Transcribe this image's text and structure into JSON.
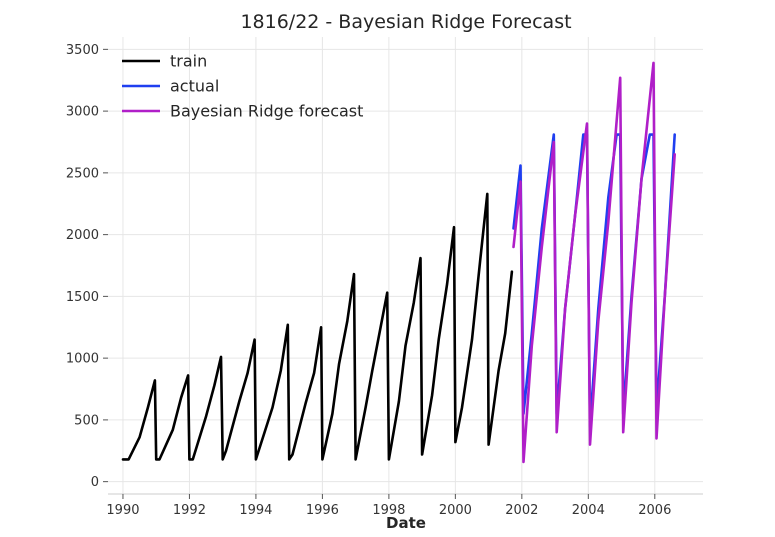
{
  "chart_data": {
    "type": "line",
    "title": "1816/22 - Bayesian Ridge Forecast",
    "xlabel": "Date",
    "ylabel": "",
    "xlim": [
      1989.55,
      2007.45
    ],
    "ylim": [
      -100,
      3600
    ],
    "x_ticks": [
      1990,
      1992,
      1994,
      1996,
      1998,
      2000,
      2002,
      2004,
      2006
    ],
    "y_ticks": [
      0,
      500,
      1000,
      1500,
      2000,
      2500,
      3000,
      3500
    ],
    "grid": true,
    "legend_position": "top-left",
    "series": [
      {
        "name": "train",
        "color": "#000000",
        "points": [
          [
            1990.0,
            180
          ],
          [
            1990.17,
            180
          ],
          [
            1990.5,
            360
          ],
          [
            1990.75,
            600
          ],
          [
            1990.96,
            820
          ],
          [
            1991.0,
            180
          ],
          [
            1991.1,
            180
          ],
          [
            1991.5,
            420
          ],
          [
            1991.75,
            680
          ],
          [
            1991.96,
            860
          ],
          [
            1992.0,
            180
          ],
          [
            1992.1,
            180
          ],
          [
            1992.5,
            530
          ],
          [
            1992.75,
            780
          ],
          [
            1992.95,
            1010
          ],
          [
            1993.0,
            180
          ],
          [
            1993.1,
            250
          ],
          [
            1993.5,
            650
          ],
          [
            1993.75,
            880
          ],
          [
            1993.96,
            1150
          ],
          [
            1994.0,
            180
          ],
          [
            1994.5,
            600
          ],
          [
            1994.75,
            900
          ],
          [
            1994.96,
            1270
          ],
          [
            1995.0,
            180
          ],
          [
            1995.1,
            220
          ],
          [
            1995.5,
            640
          ],
          [
            1995.75,
            880
          ],
          [
            1995.96,
            1250
          ],
          [
            1996.0,
            180
          ],
          [
            1996.3,
            550
          ],
          [
            1996.5,
            950
          ],
          [
            1996.75,
            1300
          ],
          [
            1996.95,
            1680
          ],
          [
            1997.0,
            180
          ],
          [
            1997.3,
            600
          ],
          [
            1997.5,
            900
          ],
          [
            1997.75,
            1250
          ],
          [
            1997.95,
            1530
          ],
          [
            1998.0,
            180
          ],
          [
            1998.3,
            650
          ],
          [
            1998.5,
            1100
          ],
          [
            1998.75,
            1450
          ],
          [
            1998.95,
            1810
          ],
          [
            1999.0,
            220
          ],
          [
            1999.3,
            700
          ],
          [
            1999.5,
            1150
          ],
          [
            1999.75,
            1600
          ],
          [
            1999.96,
            2060
          ],
          [
            2000.0,
            320
          ],
          [
            2000.2,
            600
          ],
          [
            2000.5,
            1150
          ],
          [
            2000.75,
            1800
          ],
          [
            2000.96,
            2330
          ],
          [
            2001.0,
            300
          ],
          [
            2001.3,
            900
          ],
          [
            2001.5,
            1200
          ],
          [
            2001.7,
            1700
          ]
        ]
      },
      {
        "name": "actual",
        "color": "#1f3ff0",
        "points": [
          [
            2001.75,
            2050
          ],
          [
            2001.96,
            2560
          ],
          [
            2002.05,
            550
          ],
          [
            2002.3,
            1200
          ],
          [
            2002.6,
            2050
          ],
          [
            2002.96,
            2810
          ],
          [
            2003.05,
            550
          ],
          [
            2003.3,
            1400
          ],
          [
            2003.6,
            2150
          ],
          [
            2003.85,
            2810
          ],
          [
            2003.96,
            2810
          ],
          [
            2004.05,
            450
          ],
          [
            2004.3,
            1400
          ],
          [
            2004.6,
            2300
          ],
          [
            2004.85,
            2810
          ],
          [
            2004.96,
            2810
          ],
          [
            2005.05,
            550
          ],
          [
            2005.3,
            1500
          ],
          [
            2005.6,
            2450
          ],
          [
            2005.85,
            2810
          ],
          [
            2005.96,
            2810
          ],
          [
            2006.05,
            580
          ],
          [
            2006.3,
            1500
          ],
          [
            2006.6,
            2810
          ]
        ]
      },
      {
        "name": "Bayesian Ridge forecast",
        "color": "#b01fc8",
        "points": [
          [
            2001.75,
            1900
          ],
          [
            2001.96,
            2430
          ],
          [
            2002.05,
            160
          ],
          [
            2002.3,
            1100
          ],
          [
            2002.6,
            1900
          ],
          [
            2002.96,
            2750
          ],
          [
            2003.05,
            400
          ],
          [
            2003.3,
            1400
          ],
          [
            2003.6,
            2150
          ],
          [
            2003.96,
            2900
          ],
          [
            2004.05,
            300
          ],
          [
            2004.3,
            1300
          ],
          [
            2004.6,
            2100
          ],
          [
            2004.96,
            3270
          ],
          [
            2005.05,
            400
          ],
          [
            2005.3,
            1450
          ],
          [
            2005.6,
            2450
          ],
          [
            2005.96,
            3390
          ],
          [
            2006.05,
            350
          ],
          [
            2006.3,
            1500
          ],
          [
            2006.6,
            2650
          ]
        ]
      }
    ]
  }
}
